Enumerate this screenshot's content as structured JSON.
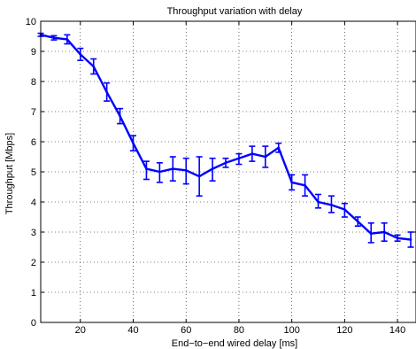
{
  "chart_data": {
    "type": "line",
    "title": "Throughput variation with delay",
    "xlabel": "End−to−end wired delay [ms]",
    "ylabel": "Throughput [Mbps]",
    "xlim": [
      5,
      147
    ],
    "ylim": [
      0,
      10
    ],
    "xticks": [
      20,
      40,
      60,
      80,
      100,
      120,
      140
    ],
    "yticks": [
      0,
      1,
      2,
      3,
      4,
      5,
      6,
      7,
      8,
      9,
      10
    ],
    "grid": true,
    "color": "#0000ff",
    "series": [
      {
        "x": [
          5,
          10,
          15,
          20,
          25,
          30,
          35,
          40,
          45,
          50,
          55,
          60,
          65,
          70,
          75,
          80,
          85,
          90,
          95,
          100,
          105,
          110,
          115,
          120,
          125,
          130,
          135,
          140,
          145
        ],
        "y": [
          9.55,
          9.45,
          9.4,
          8.9,
          8.5,
          7.65,
          6.85,
          5.95,
          5.1,
          5.0,
          5.1,
          5.05,
          4.85,
          5.1,
          5.3,
          5.45,
          5.6,
          5.5,
          5.8,
          4.65,
          4.55,
          4.0,
          3.9,
          3.75,
          3.35,
          2.95,
          3.0,
          2.8,
          2.75
        ],
        "err_low": [
          9.5,
          9.38,
          9.25,
          8.7,
          8.25,
          7.35,
          6.6,
          5.7,
          4.75,
          4.65,
          4.7,
          4.6,
          4.2,
          4.7,
          5.15,
          5.25,
          5.35,
          5.15,
          5.65,
          4.4,
          4.2,
          3.8,
          3.65,
          3.5,
          3.2,
          2.65,
          2.7,
          2.7,
          2.5
        ],
        "err_high": [
          9.6,
          9.52,
          9.55,
          9.1,
          8.75,
          7.95,
          7.1,
          6.2,
          5.35,
          5.3,
          5.5,
          5.45,
          5.5,
          5.45,
          5.45,
          5.6,
          5.85,
          5.85,
          5.95,
          4.9,
          4.9,
          4.25,
          4.2,
          3.95,
          3.5,
          3.3,
          3.3,
          2.9,
          3.0
        ]
      }
    ]
  }
}
